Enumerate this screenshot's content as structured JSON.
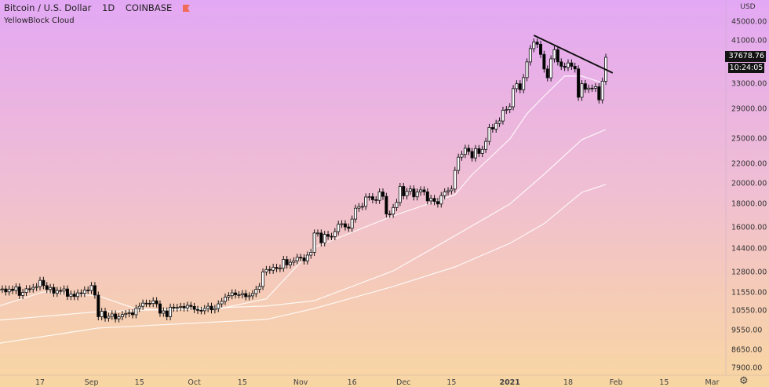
{
  "header": {
    "symbol": "Bitcoin / U.S. Dollar",
    "interval": "1D",
    "exchange": "COINBASE",
    "indicator": "YellowBlock Cloud"
  },
  "colors": {
    "background_top": "#e3a8f4",
    "background_bottom": "#f8d6a2",
    "up_candle": "#ffffff",
    "down_candle": "#000000",
    "ma_lines": "#ffffff",
    "trendline": "#111111",
    "price_label": "#131313"
  },
  "price_axis": {
    "currency": "USD",
    "current_price": "37678.76",
    "countdown": "10:24:05"
  },
  "settings_icon": "gear-icon",
  "chart_data": {
    "type": "candlestick",
    "y_scale": "log",
    "ylim": [
      7600,
      47000
    ],
    "grid": false,
    "y_ticks": [
      "45000.00",
      "41000.00",
      "33000.00",
      "29000.00",
      "25000.00",
      "22000.00",
      "20000.00",
      "18000.00",
      "16000.00",
      "14400.00",
      "12800.00",
      "11550.00",
      "10550.00",
      "9550.00",
      "8650.00",
      "7900.00"
    ],
    "x_ticks": [
      {
        "date": "2020-08-17",
        "label": "17"
      },
      {
        "date": "2020-09-01",
        "label": "Sep"
      },
      {
        "date": "2020-09-15",
        "label": "15"
      },
      {
        "date": "2020-10-01",
        "label": "Oct"
      },
      {
        "date": "2020-10-15",
        "label": "15"
      },
      {
        "date": "2020-11-01",
        "label": "Nov"
      },
      {
        "date": "2020-11-16",
        "label": "16"
      },
      {
        "date": "2020-12-01",
        "label": "Dec"
      },
      {
        "date": "2020-12-15",
        "label": "15"
      },
      {
        "date": "2021-01-01",
        "label": "2021"
      },
      {
        "date": "2021-01-18",
        "label": "18"
      },
      {
        "date": "2021-02-01",
        "label": "Feb"
      },
      {
        "date": "2021-02-15",
        "label": "15"
      },
      {
        "date": "2021-03-01",
        "label": "Mar"
      }
    ],
    "start_date": "2020-08-05",
    "closes": [
      11750,
      11770,
      11600,
      11760,
      11680,
      11890,
      11390,
      11570,
      11780,
      11770,
      11860,
      11910,
      12290,
      11970,
      11740,
      11860,
      11520,
      11680,
      11650,
      11770,
      11340,
      11470,
      11330,
      11540,
      11510,
      11710,
      11680,
      11970,
      11410,
      10240,
      10520,
      10170,
      10260,
      10380,
      10130,
      10240,
      10350,
      10400,
      10440,
      10340,
      10680,
      10790,
      10960,
      10950,
      10940,
      11090,
      10920,
      10420,
      10540,
      10240,
      10740,
      10690,
      10730,
      10780,
      10700,
      10840,
      10780,
      10620,
      10570,
      10550,
      10670,
      10790,
      10600,
      10670,
      10920,
      11060,
      11300,
      11380,
      11540,
      11430,
      11430,
      11500,
      11320,
      11370,
      11500,
      11750,
      11920,
      12820,
      12980,
      12930,
      13120,
      13040,
      13070,
      13650,
      13280,
      13460,
      13560,
      13800,
      13760,
      13550,
      13950,
      14150,
      15590,
      15590,
      14840,
      15480,
      15330,
      15310,
      15700,
      16290,
      16330,
      16070,
      15960,
      16720,
      17660,
      17800,
      17820,
      18680,
      18710,
      18430,
      18370,
      19160,
      18740,
      17150,
      17140,
      17720,
      18180,
      19700,
      18790,
      19220,
      19450,
      18700,
      19150,
      19360,
      19170,
      18320,
      18550,
      18260,
      18040,
      18810,
      19170,
      19280,
      19440,
      21350,
      22820,
      23140,
      23860,
      23480,
      22730,
      23820,
      23250,
      23730,
      24700,
      26490,
      26280,
      27040,
      27370,
      28880,
      28990,
      29400,
      32200,
      33000,
      32030,
      34030,
      36820,
      39370,
      40670,
      40240,
      38240,
      35540,
      34000,
      37390,
      39150,
      36830,
      36020,
      35820,
      36630,
      36020,
      35550,
      30830,
      33010,
      32090,
      32280,
      32260,
      32510,
      30430,
      33420,
      37678.76
    ],
    "ma_lines": [
      {
        "points": [
          [
            "2020-08-05",
            10800
          ],
          [
            "2020-08-18",
            11600
          ],
          [
            "2020-09-03",
            11370
          ],
          [
            "2020-09-13",
            10710
          ],
          [
            "2020-09-20",
            10590
          ],
          [
            "2020-10-08",
            10650
          ],
          [
            "2020-10-22",
            11200
          ],
          [
            "2020-11-05",
            14500
          ],
          [
            "2020-11-28",
            16990
          ],
          [
            "2020-12-16",
            18900
          ],
          [
            "2020-12-21",
            20900
          ],
          [
            "2021-01-01",
            25000
          ],
          [
            "2021-01-06",
            28380
          ],
          [
            "2021-01-11",
            31000
          ],
          [
            "2021-01-17",
            34290
          ],
          [
            "2021-01-22",
            34300
          ],
          [
            "2021-01-29",
            32950
          ]
        ]
      },
      {
        "points": [
          [
            "2020-08-05",
            10060
          ],
          [
            "2020-09-03",
            10500
          ],
          [
            "2020-10-22",
            10800
          ],
          [
            "2020-11-05",
            11100
          ],
          [
            "2020-11-28",
            12890
          ],
          [
            "2020-12-16",
            15380
          ],
          [
            "2021-01-01",
            18030
          ],
          [
            "2021-01-11",
            20940
          ],
          [
            "2021-01-22",
            24920
          ],
          [
            "2021-01-29",
            26220
          ]
        ]
      },
      {
        "points": [
          [
            "2020-08-05",
            8960
          ],
          [
            "2020-09-03",
            9670
          ],
          [
            "2020-10-22",
            10100
          ],
          [
            "2020-11-05",
            10670
          ],
          [
            "2020-11-28",
            11920
          ],
          [
            "2020-12-16",
            13150
          ],
          [
            "2021-01-01",
            14800
          ],
          [
            "2021-01-11",
            16340
          ],
          [
            "2021-01-22",
            19120
          ],
          [
            "2021-01-29",
            19900
          ]
        ]
      }
    ],
    "trendline": [
      [
        "2021-01-08",
        42080
      ],
      [
        "2021-01-31",
        34840
      ]
    ]
  }
}
